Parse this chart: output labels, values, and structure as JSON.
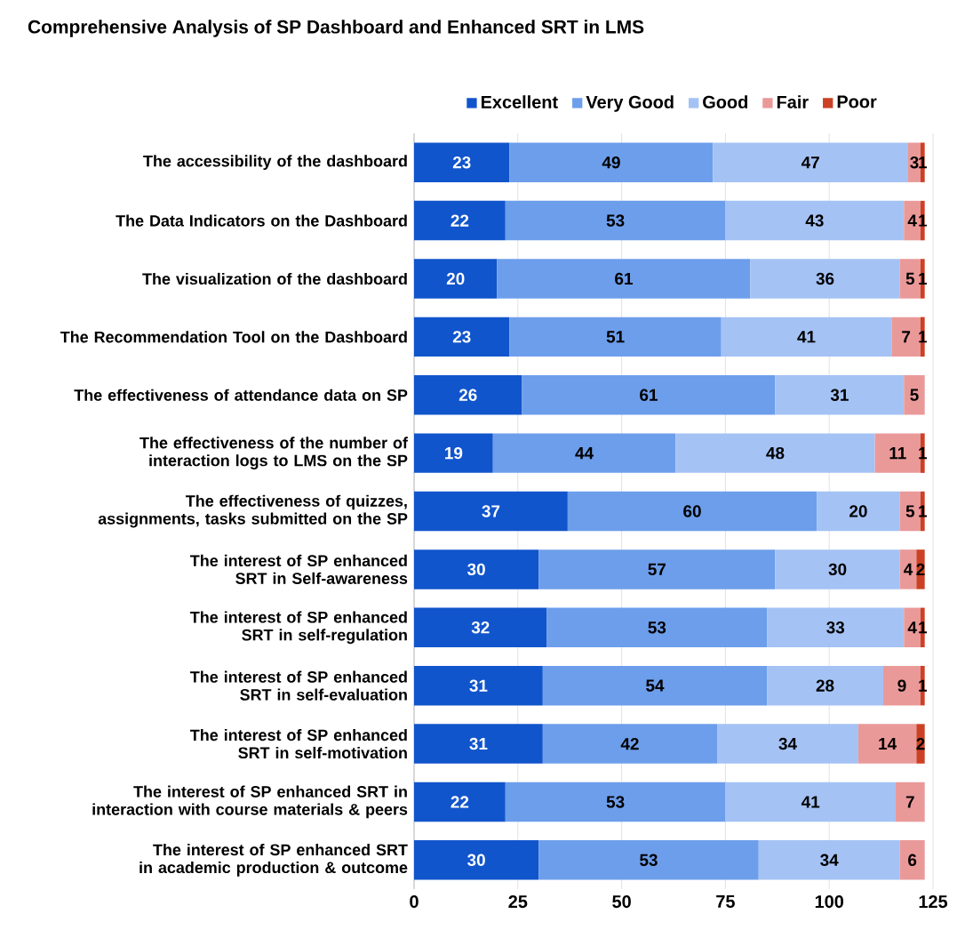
{
  "chart_data": {
    "type": "bar",
    "orientation": "horizontal",
    "stacked": true,
    "title": "Comprehensive Analysis of SP Dashboard and Enhanced SRT in LMS",
    "categories": [
      "The accessibility of the dashboard",
      "The Data Indicators on the Dashboard",
      "The visualization of the dashboard",
      "The Recommendation Tool on the Dashboard",
      "The effectiveness of attendance data on SP",
      "The effectiveness of  the number of interaction logs to LMS on the SP",
      "The effectiveness of quizzes, assignments, tasks submitted on the SP",
      "The interest of SP enhanced SRT in Self-awareness",
      "The interest of SP enhanced SRT in self-regulation",
      "The interest of SP enhanced SRT in self-evaluation",
      "The interest of SP enhanced SRT in self-motivation",
      "The interest of SP enhanced SRT in interaction with course materials & peers",
      "The interest of SP enhanced SRT in academic production & outcome"
    ],
    "series": [
      {
        "name": "Excellent",
        "color": "#1155cc",
        "values": [
          23,
          22,
          20,
          23,
          26,
          19,
          37,
          30,
          32,
          31,
          31,
          22,
          30
        ]
      },
      {
        "name": "Very Good",
        "color": "#6d9eeb",
        "values": [
          49,
          53,
          61,
          51,
          61,
          44,
          60,
          57,
          53,
          54,
          42,
          53,
          53
        ]
      },
      {
        "name": "Good",
        "color": "#a4c2f4",
        "values": [
          47,
          43,
          36,
          41,
          31,
          48,
          20,
          30,
          33,
          28,
          34,
          41,
          34
        ]
      },
      {
        "name": "Fair",
        "color": "#ea9999",
        "values": [
          3,
          4,
          5,
          7,
          5,
          11,
          5,
          4,
          4,
          9,
          14,
          7,
          6
        ]
      },
      {
        "name": "Poor",
        "color": "#cc4125",
        "values": [
          1,
          1,
          1,
          1,
          null,
          1,
          1,
          2,
          1,
          1,
          2,
          null,
          null
        ]
      }
    ],
    "xlim": [
      0,
      125
    ],
    "xticks": [
      0,
      25,
      50,
      75,
      100,
      125
    ],
    "grid": "x",
    "legend": "top",
    "data_labels": true
  }
}
